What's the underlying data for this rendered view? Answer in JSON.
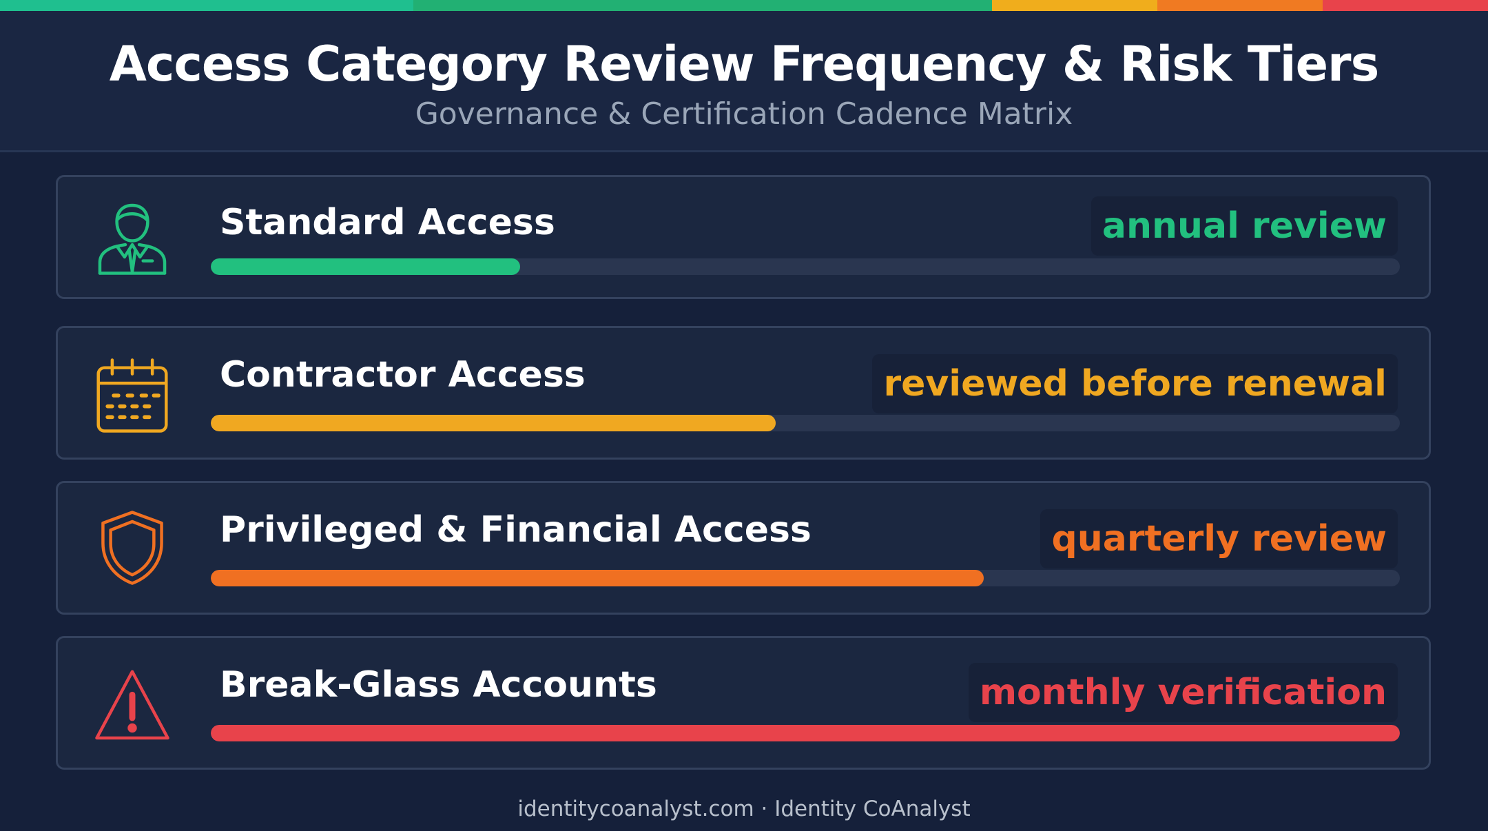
{
  "header": {
    "title": "Access Category Review Frequency & Risk Tiers",
    "subtitle": "Governance & Certification Cadence Matrix"
  },
  "top_stripe_colors": [
    "#1fbf8f",
    "#22b073",
    "#f0ad1c",
    "#f07a22",
    "#e8434b"
  ],
  "rows": [
    {
      "label": "Standard Access",
      "cadence": "annual review",
      "color": "#22c07f",
      "icon": "user-tie-icon",
      "level_fraction": 0.26
    },
    {
      "label": "Contractor Access",
      "cadence": "reviewed before renewal",
      "color": "#f0a821",
      "icon": "calendar-icon",
      "level_fraction": 0.475
    },
    {
      "label": "Privileged & Financial Access",
      "cadence": "quarterly review",
      "color": "#f07022",
      "icon": "shield-icon",
      "level_fraction": 0.65
    },
    {
      "label": "Break-Glass Accounts",
      "cadence": "monthly verification",
      "color": "#e8434b",
      "icon": "warning-triangle-icon",
      "level_fraction": 1.0
    }
  ],
  "footer": "identitycoanalyst.com · Identity CoAnalyst"
}
